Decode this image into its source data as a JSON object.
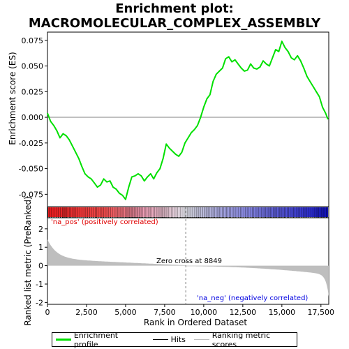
{
  "chart_data": {
    "type": "line",
    "title_line1": "Enrichment plot:",
    "title_line2": "MACROMOLECULAR_COMPLEX_ASSEMBLY",
    "xlabel": "Rank in Ordered Dataset",
    "ylabel_top": "Enrichment score (ES)",
    "ylabel_bottom": "Ranked list metric (PreRanked)",
    "xlim": [
      0,
      18000
    ],
    "x_ticks": [
      0,
      2500,
      5000,
      7500,
      10000,
      12500,
      15000,
      17500
    ],
    "x_tick_labels": [
      "0",
      "2,500",
      "5,000",
      "7,500",
      "10,000",
      "12,500",
      "15,000",
      "17,500"
    ],
    "es_ylim": [
      -0.087,
      0.083
    ],
    "es_ticks": [
      0.075,
      0.05,
      0.025,
      0.0,
      -0.025,
      -0.05,
      -0.075
    ],
    "es_tick_labels": [
      "0.075",
      "0.050",
      "0.025",
      "0.000",
      "-0.025",
      "-0.050",
      "-0.075"
    ],
    "metric_ylim": [
      -2.1,
      2.6
    ],
    "metric_ticks": [
      2,
      1,
      0,
      -1,
      -2
    ],
    "metric_tick_labels": [
      "2",
      "1",
      "0",
      "-1",
      "-2"
    ],
    "es_profile": {
      "x": [
        0,
        200,
        400,
        600,
        800,
        1000,
        1200,
        1400,
        1600,
        1800,
        2000,
        2200,
        2400,
        2600,
        2800,
        3000,
        3200,
        3400,
        3600,
        3800,
        4000,
        4200,
        4400,
        4600,
        4800,
        5000,
        5200,
        5400,
        5600,
        5800,
        6000,
        6200,
        6400,
        6600,
        6800,
        7000,
        7200,
        7400,
        7600,
        7800,
        8000,
        8200,
        8400,
        8600,
        8800,
        9000,
        9200,
        9400,
        9600,
        9800,
        10000,
        10200,
        10400,
        10600,
        10800,
        11000,
        11200,
        11400,
        11600,
        11800,
        12000,
        12200,
        12400,
        12600,
        12800,
        13000,
        13200,
        13400,
        13600,
        13800,
        14000,
        14200,
        14400,
        14600,
        14800,
        15000,
        15200,
        15400,
        15600,
        15800,
        16000,
        16200,
        16400,
        16600,
        16800,
        17000,
        17200,
        17400,
        17600,
        17800,
        17950
      ],
      "y": [
        0.004,
        -0.004,
        -0.008,
        -0.013,
        -0.02,
        -0.016,
        -0.018,
        -0.022,
        -0.028,
        -0.034,
        -0.04,
        -0.048,
        -0.055,
        -0.058,
        -0.06,
        -0.064,
        -0.068,
        -0.066,
        -0.06,
        -0.063,
        -0.062,
        -0.068,
        -0.07,
        -0.074,
        -0.076,
        -0.08,
        -0.068,
        -0.058,
        -0.057,
        -0.055,
        -0.057,
        -0.062,
        -0.058,
        -0.055,
        -0.06,
        -0.054,
        -0.05,
        -0.04,
        -0.026,
        -0.03,
        -0.033,
        -0.036,
        -0.038,
        -0.034,
        -0.025,
        -0.02,
        -0.015,
        -0.012,
        -0.008,
        0.0,
        0.01,
        0.018,
        0.022,
        0.035,
        0.042,
        0.045,
        0.048,
        0.057,
        0.059,
        0.054,
        0.056,
        0.052,
        0.048,
        0.045,
        0.046,
        0.052,
        0.048,
        0.047,
        0.049,
        0.055,
        0.052,
        0.05,
        0.058,
        0.066,
        0.064,
        0.074,
        0.068,
        0.064,
        0.058,
        0.056,
        0.06,
        0.055,
        0.048,
        0.04,
        0.035,
        0.03,
        0.025,
        0.02,
        0.01,
        0.004,
        -0.002
      ]
    },
    "hits_positions": [
      30,
      120,
      260,
      410,
      590,
      700,
      830,
      960,
      1020,
      1080,
      1150,
      1230,
      1300,
      1420,
      1500,
      1610,
      1700,
      1820,
      1950,
      2080,
      2200,
      2330,
      2450,
      2560,
      2700,
      2820,
      2940,
      3060,
      3150,
      3250,
      3380,
      3480,
      3600,
      3700,
      3800,
      3920,
      4040,
      4160,
      4260,
      4380,
      4480,
      4560,
      4650,
      4730,
      4820,
      4900,
      4980,
      5060,
      5130,
      5190,
      5250,
      5310,
      5370,
      5430,
      5490,
      5550,
      5610,
      5670,
      5730,
      5800,
      5870,
      5940,
      6020,
      6100,
      6180,
      6260,
      6350,
      6440,
      6520,
      6600,
      6690,
      6780,
      6860,
      6940,
      7010,
      7080,
      7150,
      7220,
      7290,
      7350,
      7410,
      7470,
      7530,
      7600,
      7680,
      7760,
      7850,
      7940,
      8030,
      8120,
      8220,
      8320,
      8420,
      8520,
      8620,
      8720,
      8800,
      8880,
      8960,
      9040,
      9110,
      9180,
      9250,
      9320,
      9390,
      9460,
      9530,
      9600,
      9670,
      9740,
      9810,
      9880,
      9950,
      10020,
      10090,
      10160,
      10230,
      10300,
      10380,
      10460,
      10540,
      10620,
      10700,
      10780,
      10860,
      10940,
      11020,
      11100,
      11180,
      11270,
      11360,
      11450,
      11540,
      11630,
      11720,
      11820,
      11920,
      12020,
      12120,
      12230,
      12340,
      12450,
      12560,
      12670,
      12780,
      12890,
      13000,
      13100,
      13200,
      13300,
      13400,
      13500,
      13600,
      13700,
      13800,
      13880,
      13960,
      14040,
      14120,
      14200,
      14280,
      14360,
      14440,
      14520,
      14600,
      14680,
      14760,
      14840,
      14920,
      15000,
      15080,
      15160,
      15250,
      15340,
      15440,
      15540,
      15640,
      15740,
      15840,
      15940,
      16040,
      16140,
      16250,
      16360,
      16480,
      16600,
      16720,
      16850,
      16980,
      17100,
      17200,
      17280,
      17360,
      17440,
      17520,
      17600,
      17680,
      17760,
      17840,
      17900
    ],
    "zero_cross_label": "Zero cross at 8849",
    "zero_cross_x": 8849,
    "pos_label": "'na_pos' (positively correlated)",
    "neg_label": "'na_neg' (negatively correlated)",
    "legend": {
      "profile_label": "Enrichment profile",
      "hits_label": "Hits",
      "metric_label": "Ranking metric scores"
    },
    "colors": {
      "profile": "#00e000",
      "hits": "#000000",
      "metric_fill": "#bebebe",
      "pos_text": "#e00000",
      "neg_text": "#0000e0",
      "zero_line": "#808080",
      "gradient_pos": "#e00000",
      "gradient_mid": "#f0f0f0",
      "gradient_neg": "#0000e0"
    }
  }
}
